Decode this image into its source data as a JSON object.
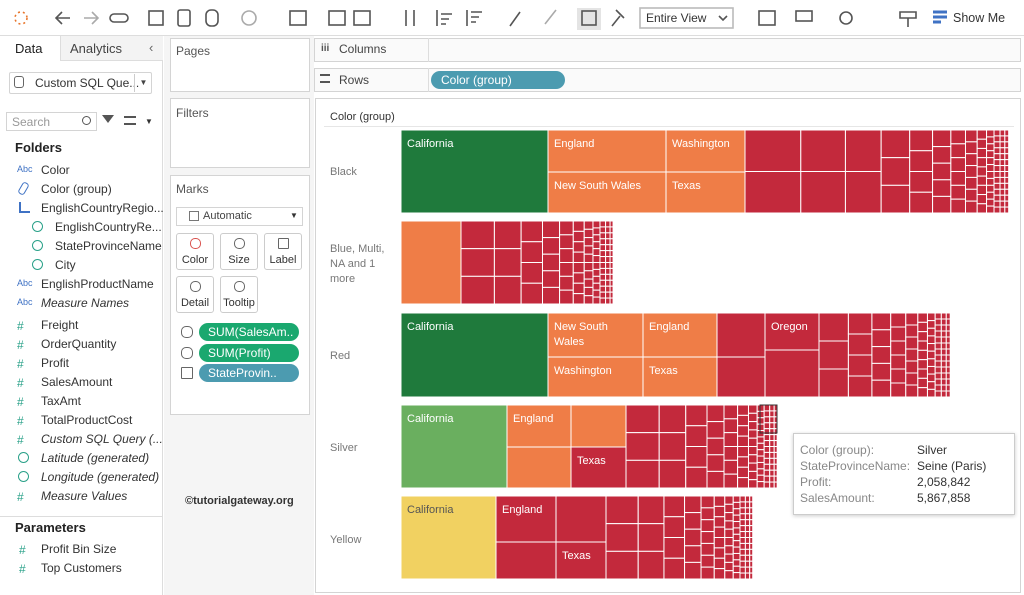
{
  "toolbar": {
    "view_mode": "Entire View",
    "show_me": "Show Me"
  },
  "data_pane": {
    "tabs": [
      "Data",
      "Analytics"
    ],
    "datasource": "Custom SQL Que...",
    "search": "Search",
    "folders_title": "Folders",
    "fields": [
      {
        "icon": "Abc",
        "name": "Color"
      },
      {
        "name": "Color (group)"
      },
      {
        "name": "EnglishCountryRegio..."
      },
      {
        "name": "EnglishCountryRe..."
      },
      {
        "name": "StateProvinceName"
      },
      {
        "name": "City"
      },
      {
        "icon": "Abc",
        "name": "EnglishProductName"
      },
      {
        "icon": "Abc",
        "name": "Measure Names"
      },
      {
        "icon": "#",
        "name": "Freight"
      },
      {
        "icon": "#",
        "name": "OrderQuantity"
      },
      {
        "icon": "#",
        "name": "Profit"
      },
      {
        "icon": "#",
        "name": "SalesAmount"
      },
      {
        "icon": "#",
        "name": "TaxAmt"
      },
      {
        "icon": "#",
        "name": "TotalProductCost"
      },
      {
        "icon": "#",
        "name": "Custom SQL Query (..."
      },
      {
        "name": "Latitude (generated)"
      },
      {
        "name": "Longitude (generated)"
      },
      {
        "icon": "#",
        "name": "Measure Values"
      }
    ],
    "parameters_title": "Parameters",
    "parameters": [
      {
        "icon": "#",
        "name": "Profit Bin Size"
      },
      {
        "icon": "#",
        "name": "Top Customers"
      }
    ]
  },
  "cards": {
    "pages": "Pages",
    "filters": "Filters",
    "marks": "Marks",
    "mark_type": "Automatic",
    "buttons": [
      "Color",
      "Size",
      "Label",
      "Detail",
      "Tooltip"
    ],
    "pills": [
      "SUM(SalesAm..",
      "SUM(Profit)",
      "StateProvin.."
    ]
  },
  "shelves": {
    "columns": "Columns",
    "rows": "Rows",
    "rows_pill": "Color (group)"
  },
  "view": {
    "header": "Color (group)",
    "watermark": "©tutorialgateway.org",
    "rows": [
      {
        "label": "Black",
        "cells": [
          "California",
          "England",
          "New South Wales",
          "Washington",
          "Texas"
        ]
      },
      {
        "label": "Blue, Multi, NA and 1 more"
      },
      {
        "label": "Red",
        "cells": [
          "California",
          "New South Wales",
          "Washington",
          "England",
          "Texas",
          "Oregon"
        ]
      },
      {
        "label": "Silver",
        "cells": [
          "California",
          "England",
          "Texas"
        ]
      },
      {
        "label": "Yellow",
        "cells": [
          "California",
          "England",
          "Texas"
        ]
      }
    ]
  },
  "tooltip": {
    "rows": [
      [
        "Color (group):",
        "Silver"
      ],
      [
        "StateProvinceName:",
        "Seine (Paris)"
      ],
      [
        "Profit:",
        "2,058,842"
      ],
      [
        "SalesAmount:",
        "5,867,858"
      ]
    ]
  }
}
